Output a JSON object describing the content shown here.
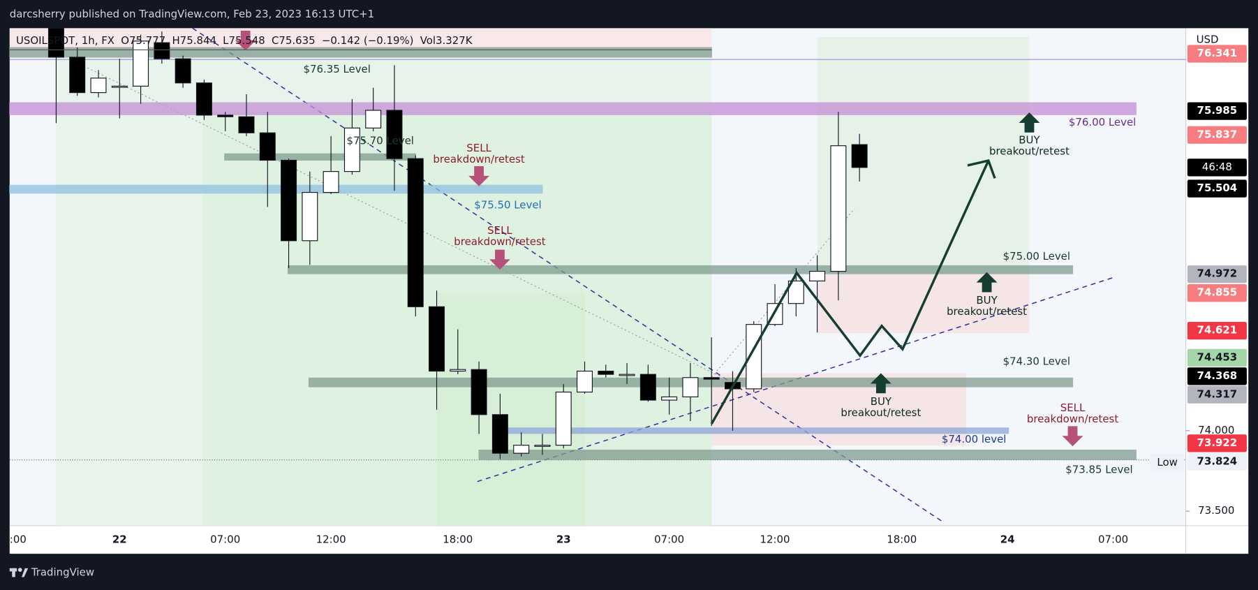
{
  "header": {
    "publisher": "darcsherry published on TradingView.com, Feb 23, 2023 16:13 UTC+1"
  },
  "footer": {
    "brand": "TradingView"
  },
  "chart_data": {
    "type": "candlestick",
    "legend": {
      "symbol": "USOILSPOT, 1h, FX",
      "open": "O75.777",
      "high": "H75.844",
      "low": "L75.548",
      "close": "C75.635",
      "change": "−0.142 (−0.19%)",
      "volume": "Vol3.327K"
    },
    "currency": "USD",
    "categories": [
      ":00",
      null,
      null,
      null,
      null,
      "22",
      null,
      null,
      null,
      null,
      "07:00",
      null,
      null,
      null,
      null,
      "12:00",
      null,
      null,
      null,
      null,
      null,
      "18:00",
      null,
      null,
      null,
      null,
      "23",
      null,
      null,
      null,
      null,
      "07:00",
      null,
      null,
      null,
      null,
      "12:00",
      null,
      null,
      null,
      null,
      null,
      "18:00",
      null,
      null,
      null,
      null,
      "24",
      null,
      null,
      null,
      null,
      "07:00"
    ],
    "open": [
      null,
      null,
      76.5,
      76.32,
      76.1,
      76.14,
      76.14,
      76.41,
      76.31,
      76.16,
      75.96,
      75.95,
      75.85,
      75.68,
      75.18,
      75.48,
      75.61,
      75.88,
      75.99,
      75.69,
      74.77,
      74.37,
      74.38,
      74.1,
      73.86,
      73.91,
      73.91,
      74.24,
      74.37,
      74.35,
      74.35,
      74.19,
      74.21,
      74.33,
      74.3,
      74.26,
      74.66,
      74.79,
      74.93,
      74.99,
      75.777,
      null,
      null,
      null,
      null,
      null,
      null,
      null,
      null,
      null,
      null,
      null,
      null
    ],
    "high": [
      null,
      null,
      76.5,
      76.38,
      76.24,
      76.31,
      76.46,
      76.48,
      76.33,
      76.18,
      75.98,
      76.09,
      75.98,
      75.69,
      75.61,
      75.83,
      76.06,
      76.13,
      76.27,
      75.71,
      74.87,
      74.63,
      74.43,
      74.23,
      73.99,
      73.98,
      74.29,
      74.43,
      74.41,
      74.42,
      74.41,
      74.33,
      74.42,
      74.58,
      74.37,
      74.68,
      74.91,
      75.01,
      75.09,
      75.98,
      75.844,
      null,
      null,
      null,
      null,
      null,
      null,
      null,
      null,
      null,
      null,
      null,
      null
    ],
    "low": [
      null,
      null,
      75.91,
      76.08,
      76.07,
      75.94,
      76.03,
      76.28,
      76.13,
      75.93,
      75.86,
      75.83,
      75.39,
      75.01,
      75.03,
      75.47,
      75.59,
      75.86,
      75.49,
      74.71,
      74.13,
      74.35,
      73.98,
      73.824,
      73.84,
      73.85,
      73.89,
      74.23,
      74.33,
      74.29,
      74.18,
      74.1,
      74.06,
      74.03,
      74.0,
      74.24,
      74.65,
      74.71,
      74.61,
      74.81,
      75.548,
      null,
      null,
      null,
      null,
      null,
      null,
      null,
      null,
      null,
      null,
      null,
      null
    ],
    "close": [
      null,
      null,
      76.32,
      76.1,
      76.19,
      76.14,
      76.42,
      76.31,
      76.16,
      75.96,
      75.95,
      75.85,
      75.68,
      75.18,
      75.48,
      75.61,
      75.88,
      75.99,
      75.69,
      74.77,
      74.37,
      74.38,
      74.1,
      73.86,
      73.91,
      73.91,
      74.24,
      74.37,
      74.35,
      74.35,
      74.19,
      74.21,
      74.33,
      74.32,
      74.26,
      74.66,
      74.79,
      74.93,
      74.99,
      75.77,
      75.635,
      null,
      null,
      null,
      null,
      null,
      null,
      null,
      null,
      null,
      null,
      null,
      null
    ],
    "ylim": [
      73.41,
      76.5
    ],
    "yticks": [
      {
        "value": 73.5,
        "label": "73.500"
      },
      {
        "value": 74,
        "label": "74.000"
      }
    ],
    "price_labels": [
      {
        "value": 76.341,
        "label": "76.341",
        "color": "#f77c80",
        "text_color": "#ffffff"
      },
      {
        "value": 75.985,
        "label": "75.985",
        "color": "#000000",
        "text_color": "#ffffff"
      },
      {
        "value": 75.837,
        "label": "75.837",
        "color": "#f77c80",
        "text_color": "#ffffff"
      },
      {
        "value": 75.504,
        "label": "75.504",
        "color": "#000000",
        "text_color": "#ffffff"
      },
      {
        "value": 74.972,
        "label": "74.972",
        "color": "#b2b5be",
        "text_color": "#131722"
      },
      {
        "value": 74.855,
        "label": "74.855",
        "color": "#f77c80",
        "text_color": "#ffffff"
      },
      {
        "value": 74.621,
        "label": "74.621",
        "color": "#f23645",
        "text_color": "#ffffff"
      },
      {
        "value": 74.453,
        "label": "74.453",
        "color": "#a5d6a7",
        "text_color": "#131722"
      },
      {
        "value": 74.368,
        "label": "74.368",
        "color": "#000000",
        "text_color": "#ffffff"
      },
      {
        "value": 74.317,
        "label": "74.317",
        "color": "#b2b5be",
        "text_color": "#131722"
      },
      {
        "value": 73.922,
        "label": "73.922",
        "color": "#f23645",
        "text_color": "#ffffff"
      },
      {
        "value": 73.824,
        "label": "73.824",
        "color": "#eef1f8",
        "text_color": "#131722"
      }
    ],
    "countdown": "46:48",
    "low_marker": "Low",
    "levels": [
      {
        "label": "$76.35 Level",
        "value": 76.35,
        "color": "#7f9c8f",
        "text_color": "#1b3a2a"
      },
      {
        "label": "$76.00 Level",
        "value": 76.0,
        "color": "#c58fd6",
        "text_color": "#6a2c91"
      },
      {
        "label": "$75.70 Level",
        "value": 75.7,
        "color": "#7f9c8f",
        "text_color": "#1b3a2a"
      },
      {
        "label": "$75.50 Level",
        "value": 75.5,
        "color": "#8fc0e0",
        "text_color": "#1f6fb2"
      },
      {
        "label": "$75.00 Level",
        "value": 75.0,
        "color": "#7f9c8f",
        "text_color": "#1b3a2a"
      },
      {
        "label": "$74.30 Level",
        "value": 74.3,
        "color": "#7f9c8f",
        "text_color": "#1b3a2a"
      },
      {
        "label": "$74.00 level",
        "value": 74.0,
        "color": "#8ea6d8",
        "text_color": "#1f3a93"
      },
      {
        "label": "$73.85 Level",
        "value": 73.85,
        "color": "#7f9c8f",
        "text_color": "#1b3a2a"
      }
    ],
    "annotations": [
      {
        "signal": "SELL",
        "note": "breakdown/retest"
      },
      {
        "signal": "SELL",
        "note": "breakdown/retest"
      },
      {
        "signal": "SELL",
        "note": "breakdown/retest"
      },
      {
        "signal": "BUY",
        "note": "breakout/retest"
      },
      {
        "signal": "BUY",
        "note": "breakout/retest"
      },
      {
        "signal": "BUY",
        "note": "breakout/retest"
      }
    ]
  }
}
